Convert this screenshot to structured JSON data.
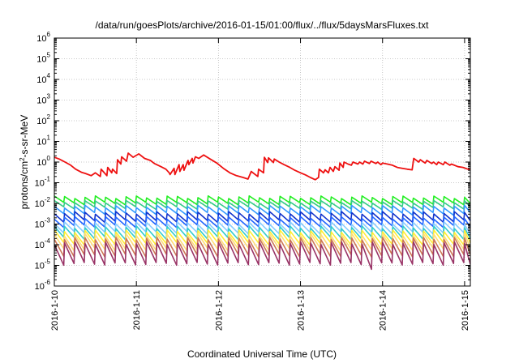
{
  "chart_data": {
    "type": "line",
    "title": "/data/run/goesPlots/archive/2016-01-15/01:00/flux/../flux/5daysMarsFluxes.txt",
    "xlabel": "Coordinated Universal Time (UTC)",
    "ylabel_parts": [
      "protons/cm",
      "2",
      "-s-sr-MeV"
    ],
    "y_scale": "log",
    "ylim": [
      1e-06,
      1000000.0
    ],
    "y_ticks": [
      {
        "mant": "10",
        "exp": "-6"
      },
      {
        "mant": "10",
        "exp": "-5"
      },
      {
        "mant": "10",
        "exp": "-4"
      },
      {
        "mant": "10",
        "exp": "-3"
      },
      {
        "mant": "10",
        "exp": "-2"
      },
      {
        "mant": "10",
        "exp": "-1"
      },
      {
        "mant": "10",
        "exp": "0"
      },
      {
        "mant": "10",
        "exp": "1"
      },
      {
        "mant": "10",
        "exp": "2"
      },
      {
        "mant": "10",
        "exp": "3"
      },
      {
        "mant": "10",
        "exp": "4"
      },
      {
        "mant": "10",
        "exp": "5"
      },
      {
        "mant": "10",
        "exp": "6"
      }
    ],
    "x_ticks": [
      "2016-1-10",
      "2016-1-11",
      "2016-1-12",
      "2016-1-13",
      "2016-1-14",
      "2016-1-15"
    ],
    "xlim_days": [
      0,
      5.07
    ],
    "grid": true,
    "series": [
      {
        "color": "#ee1111",
        "x": [
          0.0,
          0.06,
          0.13,
          0.2,
          0.26,
          0.33,
          0.38,
          0.45,
          0.5,
          0.56,
          0.57,
          0.64,
          0.65,
          0.7,
          0.71,
          0.76,
          0.77,
          0.81,
          0.82,
          0.88,
          0.9,
          0.96,
          1.03,
          1.1,
          1.17,
          1.22,
          1.3,
          1.36,
          1.4,
          1.41,
          1.46,
          1.47,
          1.52,
          1.53,
          1.57,
          1.58,
          1.63,
          1.64,
          1.68,
          1.69,
          1.72,
          1.76,
          1.82,
          1.9,
          1.98,
          2.06,
          2.14,
          2.22,
          2.3,
          2.36,
          2.4,
          2.48,
          2.49,
          2.55,
          2.56,
          2.6,
          2.61,
          2.67,
          2.68,
          2.74,
          2.8,
          2.87,
          2.93,
          3.0,
          3.06,
          3.12,
          3.18,
          3.22,
          3.23,
          3.28,
          3.3,
          3.34,
          3.36,
          3.4,
          3.42,
          3.47,
          3.48,
          3.52,
          3.53,
          3.58,
          3.62,
          3.64,
          3.7,
          3.72,
          3.76,
          3.78,
          3.84,
          3.86,
          3.92,
          3.94,
          3.98,
          4.0,
          4.06,
          4.12,
          4.18,
          4.24,
          4.3,
          4.36,
          4.38,
          4.44,
          4.46,
          4.52,
          4.54,
          4.6,
          4.62,
          4.66,
          4.68,
          4.74,
          4.76,
          4.82,
          4.84,
          4.92,
          4.98,
          5.04,
          5.07
        ],
        "y": [
          1.7,
          1.4,
          1.0,
          0.7,
          0.45,
          0.32,
          0.28,
          0.22,
          0.3,
          0.2,
          0.45,
          0.22,
          0.55,
          0.3,
          0.45,
          0.28,
          1.3,
          0.8,
          1.8,
          1.1,
          2.7,
          1.7,
          2.5,
          1.5,
          1.2,
          0.85,
          0.6,
          0.45,
          0.3,
          0.25,
          0.5,
          0.25,
          0.75,
          0.35,
          0.75,
          0.4,
          1.2,
          0.75,
          1.5,
          0.9,
          1.8,
          1.5,
          2.2,
          1.4,
          0.9,
          0.5,
          0.3,
          0.22,
          0.18,
          0.15,
          0.35,
          0.2,
          0.45,
          0.3,
          1.7,
          0.95,
          1.6,
          0.95,
          1.4,
          1.0,
          0.75,
          0.55,
          0.4,
          0.3,
          0.24,
          0.18,
          0.14,
          0.18,
          0.45,
          0.3,
          0.42,
          0.3,
          0.55,
          0.35,
          0.6,
          0.4,
          0.9,
          0.55,
          1.0,
          0.8,
          0.7,
          1.0,
          0.8,
          1.0,
          0.8,
          1.1,
          0.85,
          1.1,
          0.85,
          1.0,
          0.75,
          0.9,
          0.8,
          0.7,
          0.55,
          0.5,
          0.45,
          0.42,
          1.5,
          1.0,
          1.3,
          0.9,
          1.2,
          0.85,
          1.0,
          0.75,
          1.0,
          0.75,
          1.0,
          0.7,
          0.8,
          0.6,
          0.55,
          0.45,
          0.42
        ]
      },
      {
        "color": "#22ee22",
        "peak": 0.02,
        "drop": 0.5
      },
      {
        "color": "#33cc88",
        "peak": 0.012,
        "drop": 0.5
      },
      {
        "color": "#3399ff",
        "peak": 0.007,
        "drop": 0.45
      },
      {
        "color": "#1133cc",
        "peak": 0.0035,
        "drop": 0.4
      },
      {
        "color": "#2266ff",
        "peak": 0.002,
        "drop": 0.4
      },
      {
        "color": "#88ccff",
        "peak": 0.0011,
        "drop": 0.35
      },
      {
        "color": "#33cccc",
        "peak": 0.0007,
        "drop": 0.3
      },
      {
        "color": "#ffee33",
        "peak": 0.00045,
        "drop": 0.25
      },
      {
        "color": "#ffdd77",
        "peak": 0.0003,
        "drop": 0.2
      },
      {
        "color": "#cc7755",
        "peak": 0.0002,
        "drop": 0.15
      },
      {
        "color": "#993366",
        "peak": 0.00012,
        "drop": 0.1
      }
    ],
    "sawtooth_period_days": 0.125
  }
}
